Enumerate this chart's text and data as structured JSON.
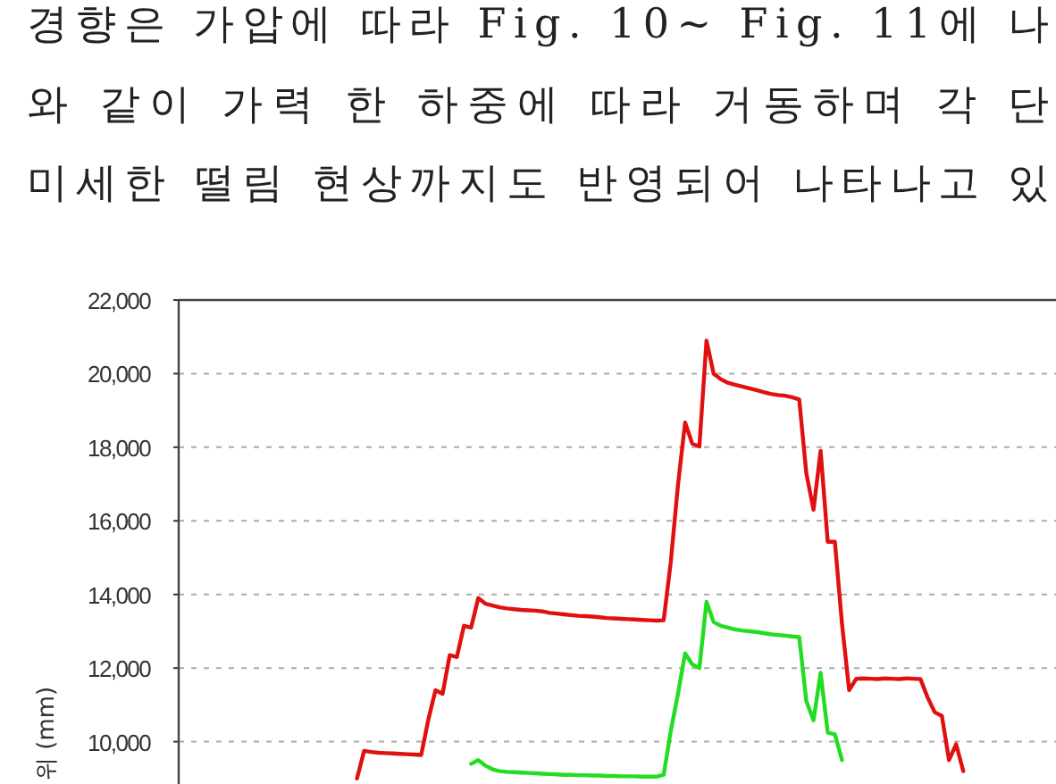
{
  "chart_data": {
    "type": "line",
    "annotations": [
      "경향은 가압에 따라 Fig. 10~ Fig. 11에 나",
      "와 같이 가력 한 하중에 따라 거동하며 각 단",
      "미세한 떨림 현상까지도 반영되어 나타나고 있"
    ],
    "ylabel": "위 (mm)",
    "categories": [
      null,
      null,
      null,
      null,
      null,
      null,
      null,
      null,
      null,
      null,
      null,
      null,
      null,
      null,
      null,
      null,
      null,
      null,
      null,
      null,
      null,
      null,
      null,
      null,
      null,
      null,
      null,
      null,
      null,
      null,
      null,
      null,
      null,
      null,
      null,
      null,
      null,
      null,
      null,
      null,
      null,
      null,
      null,
      null,
      null,
      null,
      null,
      null,
      null,
      null,
      null,
      null,
      null,
      null,
      null,
      null,
      null,
      null,
      null,
      null,
      null,
      null,
      null,
      null,
      null,
      null,
      null,
      null,
      null,
      null,
      null,
      null,
      null,
      null,
      null,
      null,
      null,
      null,
      null,
      null,
      null,
      null,
      null,
      null,
      null,
      null,
      null,
      null,
      null,
      null,
      null,
      null,
      null,
      null,
      null,
      null,
      null,
      null,
      null,
      null,
      null,
      null,
      null,
      null,
      null,
      null,
      null,
      null,
      null,
      null,
      null,
      null,
      null,
      null,
      null,
      null,
      null,
      null,
      null,
      null,
      null,
      null,
      null
    ],
    "series": [
      {
        "color": "#e01010",
        "values": [
          null,
          null,
          null,
          null,
          null,
          null,
          null,
          null,
          null,
          null,
          null,
          null,
          null,
          null,
          null,
          null,
          null,
          null,
          null,
          null,
          null,
          null,
          null,
          null,
          null,
          9000,
          9750,
          9720,
          9700,
          9690,
          9680,
          9670,
          9660,
          9650,
          9640,
          10600,
          11400,
          11300,
          12350,
          12300,
          13150,
          13100,
          13900,
          13750,
          13700,
          13650,
          13620,
          13600,
          13580,
          13570,
          13560,
          13540,
          13500,
          13480,
          13460,
          13440,
          13420,
          13410,
          13400,
          13380,
          13360,
          13350,
          13340,
          13330,
          13320,
          13310,
          13300,
          13290,
          13300,
          14900,
          16970,
          18670,
          18100,
          18020,
          20900,
          20000,
          19850,
          19750,
          19700,
          19650,
          19600,
          19550,
          19500,
          19450,
          19420,
          19400,
          19360,
          19300,
          17290,
          16300,
          17900,
          15430,
          15430,
          13200,
          11400,
          11710,
          11720,
          11710,
          11700,
          11720,
          11710,
          11700,
          11720,
          11710,
          11700,
          11200,
          10800,
          10700,
          9500,
          9930,
          9200,
          null,
          null,
          null,
          null,
          null,
          null,
          null,
          null,
          null,
          null,
          null,
          null
        ]
      },
      {
        "color": "#22dd22",
        "values": [
          null,
          null,
          null,
          null,
          null,
          null,
          null,
          null,
          null,
          null,
          null,
          null,
          null,
          null,
          null,
          null,
          null,
          null,
          null,
          null,
          null,
          null,
          null,
          null,
          null,
          null,
          null,
          null,
          null,
          null,
          null,
          null,
          null,
          null,
          null,
          null,
          null,
          null,
          null,
          null,
          null,
          9400,
          9500,
          9350,
          9250,
          9200,
          9180,
          9170,
          9160,
          9150,
          9140,
          9130,
          9120,
          9110,
          9100,
          9100,
          9090,
          9090,
          9080,
          9080,
          9070,
          9070,
          9060,
          9060,
          9060,
          9050,
          9050,
          9050,
          9100,
          10300,
          11300,
          12400,
          12100,
          12000,
          13800,
          13250,
          13150,
          13100,
          13050,
          13020,
          13000,
          12980,
          12950,
          12920,
          12900,
          12880,
          12860,
          12840,
          11100,
          10580,
          11870,
          10250,
          10200,
          9500,
          null,
          null,
          null,
          null,
          null,
          null,
          null,
          null,
          null,
          null,
          null,
          null,
          null,
          null,
          null,
          null,
          null,
          null,
          null,
          null,
          null,
          null,
          null,
          null,
          null,
          null,
          null,
          null,
          null
        ]
      }
    ],
    "ylim": [
      8850,
      22000
    ],
    "yticks": [
      {
        "value": 10000,
        "label": "10,000"
      },
      {
        "value": 12000,
        "label": "12,000"
      },
      {
        "value": 14000,
        "label": "14,000"
      },
      {
        "value": 16000,
        "label": "16,000"
      },
      {
        "value": 18000,
        "label": "18,000"
      },
      {
        "value": 20000,
        "label": "20,000"
      },
      {
        "value": 22000,
        "label": "22,000"
      }
    ],
    "grid": "y"
  }
}
